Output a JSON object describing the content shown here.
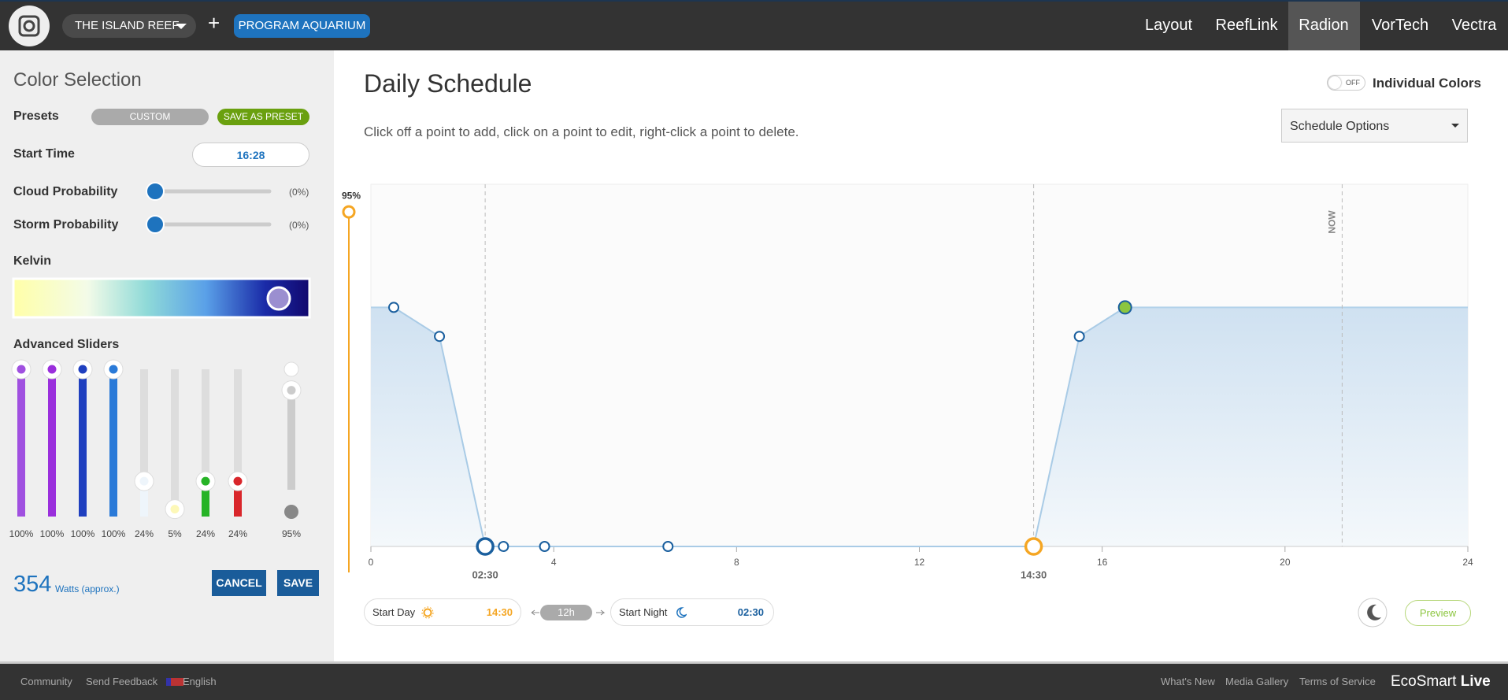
{
  "nav": {
    "aquarium": "THE ISLAND REEF",
    "add": "+",
    "program": "PROGRAM AQUARIUM",
    "tabs": [
      "Layout",
      "ReefLink",
      "Radion",
      "VorTech",
      "Vectra"
    ]
  },
  "color_selection": {
    "title": "Color Selection",
    "presets_label": "Presets",
    "preset": "CUSTOM",
    "save_preset": "SAVE AS PRESET",
    "start_time_label": "Start Time",
    "start_time": "16:28",
    "cloud": {
      "label": "Cloud Probability",
      "value": 0,
      "value_label": "(0%)"
    },
    "storm": {
      "label": "Storm Probability",
      "value": 0,
      "value_label": "(0%)"
    },
    "kelvin_label": "Kelvin",
    "advanced": {
      "title": "Advanced Sliders",
      "channels": [
        {
          "color": "#a050e0",
          "value": 100,
          "label": "100%"
        },
        {
          "color": "#9a2fdc",
          "value": 100,
          "label": "100%"
        },
        {
          "color": "#1f3fbf",
          "value": 100,
          "label": "100%"
        },
        {
          "color": "#2a7ad8",
          "value": 100,
          "label": "100%"
        },
        {
          "color": "#eef5fb",
          "value": 24,
          "label": "24%"
        },
        {
          "color": "#fdf8b8",
          "value": 5,
          "label": "5%"
        },
        {
          "color": "#26b326",
          "value": 24,
          "label": "24%"
        },
        {
          "color": "#d9262b",
          "value": 24,
          "label": "24%"
        }
      ],
      "master": {
        "value": 95,
        "label": "95%"
      }
    },
    "watts": 354,
    "watts_label": "Watts (approx.)",
    "cancel": "CANCEL",
    "save": "SAVE"
  },
  "schedule": {
    "title": "Daily Schedule",
    "toggle": "OFF",
    "individual_colors": "Individual Colors",
    "instructions": "Click off a point to add, click on a point to edit, right-click a point to delete.",
    "options": "Schedule Options",
    "intensity": {
      "value": 95,
      "label": "95%"
    },
    "start_day_label": "Start Day",
    "start_day": "14:30",
    "duration": "12h",
    "start_night_label": "Start Night",
    "start_night": "02:30",
    "preview": "Preview"
  },
  "chart_data": {
    "type": "line",
    "x": [
      0.5,
      1.5,
      2.5,
      2.9,
      3.8,
      6.5,
      14.5,
      15.5,
      16.5
    ],
    "values": [
      66,
      58,
      0,
      0,
      0,
      0,
      0,
      58,
      66
    ],
    "color": "#1a5f9e",
    "xlim": [
      0,
      24
    ],
    "ylim": [
      0,
      100
    ],
    "xticks": [
      0,
      4,
      8,
      12,
      16,
      20,
      24
    ],
    "selected": 8,
    "markers": [
      {
        "x": 2.5,
        "label": "02:30",
        "color": "#1a5f9e"
      },
      {
        "x": 14.5,
        "label": "14:30",
        "color": "#f5a623"
      },
      {
        "x": 21.25,
        "label": "NOW"
      }
    ]
  },
  "footer": {
    "links": [
      "Community",
      "Send Feedback",
      "English"
    ],
    "right_links": [
      "What's New",
      "Media Gallery",
      "Terms of Service"
    ],
    "brand": "EcoSmart",
    "brand_bold": "Live"
  }
}
